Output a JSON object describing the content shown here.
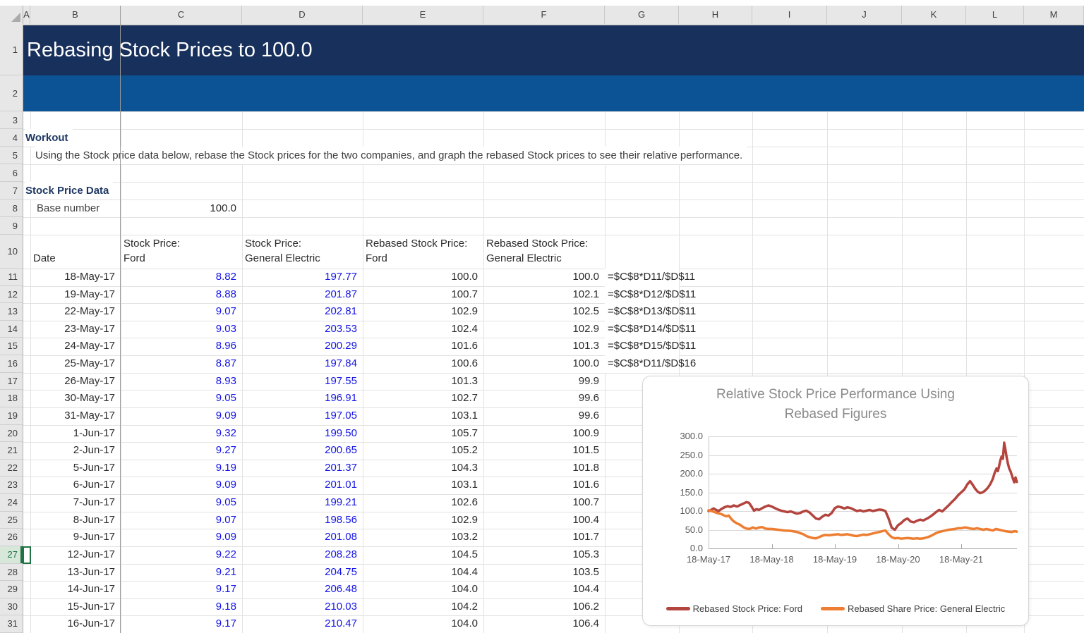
{
  "colors": {
    "title_band_bg": "#18305C",
    "subtitle_band_bg": "#0B5394",
    "heading_text": "#1F3864",
    "input_blue": "#1414E8",
    "selection_green": "#217346",
    "ford_line": "#B3443E",
    "ge_line": "#ED7D31"
  },
  "sheet": {
    "title": "Rebasing Stock Prices to 100.0",
    "column_letters": [
      "A",
      "B",
      "C",
      "D",
      "E",
      "F",
      "G",
      "H",
      "I",
      "J",
      "K",
      "L",
      "M"
    ],
    "row_count": 31,
    "selected_row": 27,
    "selected_cell": "A27",
    "workout_label": "Workout",
    "instruction": "Using the Stock price data below, rebase the Stock prices for the two companies, and graph the rebased Stock prices to see their relative performance.",
    "section_label": "Stock Price Data",
    "base_number_label": "Base number",
    "base_number_value": "100.0",
    "table": {
      "columns": [
        {
          "col": "B",
          "lines": [
            "Date"
          ]
        },
        {
          "col": "C",
          "lines": [
            "Stock Price:",
            "Ford"
          ]
        },
        {
          "col": "D",
          "lines": [
            "Stock Price:",
            "General Electric"
          ]
        },
        {
          "col": "E",
          "lines": [
            "Rebased Stock Price:",
            "Ford"
          ]
        },
        {
          "col": "F",
          "lines": [
            "Rebased Stock Price:",
            "General Electric"
          ]
        }
      ],
      "rows": [
        {
          "row": 11,
          "date": "18-May-17",
          "ford": "8.82",
          "ge": "197.77",
          "rebased_ford": "100.0",
          "rebased_ge": "100.0",
          "formula": "=$C$8*D11/$D$11"
        },
        {
          "row": 12,
          "date": "19-May-17",
          "ford": "8.88",
          "ge": "201.87",
          "rebased_ford": "100.7",
          "rebased_ge": "102.1",
          "formula": "=$C$8*D12/$D$11"
        },
        {
          "row": 13,
          "date": "22-May-17",
          "ford": "9.07",
          "ge": "202.81",
          "rebased_ford": "102.9",
          "rebased_ge": "102.5",
          "formula": "=$C$8*D13/$D$11"
        },
        {
          "row": 14,
          "date": "23-May-17",
          "ford": "9.03",
          "ge": "203.53",
          "rebased_ford": "102.4",
          "rebased_ge": "102.9",
          "formula": "=$C$8*D14/$D$11"
        },
        {
          "row": 15,
          "date": "24-May-17",
          "ford": "8.96",
          "ge": "200.29",
          "rebased_ford": "101.6",
          "rebased_ge": "101.3",
          "formula": "=$C$8*D15/$D$11"
        },
        {
          "row": 16,
          "date": "25-May-17",
          "ford": "8.87",
          "ge": "197.84",
          "rebased_ford": "100.6",
          "rebased_ge": "100.0",
          "formula": "=$C$8*D11/$D$16"
        },
        {
          "row": 17,
          "date": "26-May-17",
          "ford": "8.93",
          "ge": "197.55",
          "rebased_ford": "101.3",
          "rebased_ge": "99.9"
        },
        {
          "row": 18,
          "date": "30-May-17",
          "ford": "9.05",
          "ge": "196.91",
          "rebased_ford": "102.7",
          "rebased_ge": "99.6"
        },
        {
          "row": 19,
          "date": "31-May-17",
          "ford": "9.09",
          "ge": "197.05",
          "rebased_ford": "103.1",
          "rebased_ge": "99.6"
        },
        {
          "row": 20,
          "date": "1-Jun-17",
          "ford": "9.32",
          "ge": "199.50",
          "rebased_ford": "105.7",
          "rebased_ge": "100.9"
        },
        {
          "row": 21,
          "date": "2-Jun-17",
          "ford": "9.27",
          "ge": "200.65",
          "rebased_ford": "105.2",
          "rebased_ge": "101.5"
        },
        {
          "row": 22,
          "date": "5-Jun-17",
          "ford": "9.19",
          "ge": "201.37",
          "rebased_ford": "104.3",
          "rebased_ge": "101.8"
        },
        {
          "row": 23,
          "date": "6-Jun-17",
          "ford": "9.09",
          "ge": "201.01",
          "rebased_ford": "103.1",
          "rebased_ge": "101.6"
        },
        {
          "row": 24,
          "date": "7-Jun-17",
          "ford": "9.05",
          "ge": "199.21",
          "rebased_ford": "102.6",
          "rebased_ge": "100.7"
        },
        {
          "row": 25,
          "date": "8-Jun-17",
          "ford": "9.07",
          "ge": "198.56",
          "rebased_ford": "102.9",
          "rebased_ge": "100.4"
        },
        {
          "row": 26,
          "date": "9-Jun-17",
          "ford": "9.09",
          "ge": "201.08",
          "rebased_ford": "103.2",
          "rebased_ge": "101.7"
        },
        {
          "row": 27,
          "date": "12-Jun-17",
          "ford": "9.22",
          "ge": "208.28",
          "rebased_ford": "104.5",
          "rebased_ge": "105.3"
        },
        {
          "row": 28,
          "date": "13-Jun-17",
          "ford": "9.21",
          "ge": "204.75",
          "rebased_ford": "104.4",
          "rebased_ge": "103.5"
        },
        {
          "row": 29,
          "date": "14-Jun-17",
          "ford": "9.17",
          "ge": "206.48",
          "rebased_ford": "104.0",
          "rebased_ge": "104.4"
        },
        {
          "row": 30,
          "date": "15-Jun-17",
          "ford": "9.18",
          "ge": "210.03",
          "rebased_ford": "104.2",
          "rebased_ge": "106.2"
        },
        {
          "row": 31,
          "date": "16-Jun-17",
          "ford": "9.17",
          "ge": "210.47",
          "rebased_ford": "104.0",
          "rebased_ge": "106.4"
        }
      ]
    }
  },
  "chart_data": {
    "type": "line",
    "title_lines": [
      "Relative Stock Price Performance Using",
      "Rebased Figures"
    ],
    "x_tick_labels": [
      "18-May-17",
      "18-May-18",
      "18-May-19",
      "18-May-20",
      "18-May-21"
    ],
    "y_ticks": [
      0,
      50,
      100,
      150,
      200,
      250,
      300
    ],
    "y_tick_labels": [
      "0.0",
      "50.0",
      "100.0",
      "150.0",
      "200.0",
      "250.0",
      "300.0"
    ],
    "ylim": [
      0,
      300
    ],
    "x_years_span": 4.88,
    "grid": "horizontal",
    "legend_position": "bottom",
    "series": [
      {
        "name": "Rebased Stock Price: Ford",
        "color": "#B3443E",
        "points": [
          [
            0,
            100
          ],
          [
            0.04,
            103
          ],
          [
            0.08,
            107
          ],
          [
            0.12,
            103
          ],
          [
            0.16,
            100
          ],
          [
            0.2,
            105
          ],
          [
            0.25,
            110
          ],
          [
            0.3,
            113
          ],
          [
            0.35,
            111
          ],
          [
            0.4,
            115
          ],
          [
            0.45,
            112
          ],
          [
            0.5,
            116
          ],
          [
            0.55,
            120
          ],
          [
            0.6,
            124
          ],
          [
            0.64,
            122
          ],
          [
            0.68,
            112
          ],
          [
            0.72,
            101
          ],
          [
            0.76,
            105
          ],
          [
            0.8,
            103
          ],
          [
            0.85,
            108
          ],
          [
            0.9,
            112
          ],
          [
            0.95,
            115
          ],
          [
            1.0,
            112
          ],
          [
            1.05,
            108
          ],
          [
            1.1,
            104
          ],
          [
            1.15,
            101
          ],
          [
            1.2,
            99
          ],
          [
            1.25,
            97
          ],
          [
            1.3,
            99
          ],
          [
            1.35,
            96
          ],
          [
            1.4,
            93
          ],
          [
            1.45,
            95
          ],
          [
            1.5,
            99
          ],
          [
            1.55,
            101
          ],
          [
            1.6,
            96
          ],
          [
            1.65,
            88
          ],
          [
            1.7,
            80
          ],
          [
            1.75,
            78
          ],
          [
            1.8,
            85
          ],
          [
            1.85,
            90
          ],
          [
            1.9,
            88
          ],
          [
            1.95,
            95
          ],
          [
            2.0,
            108
          ],
          [
            2.05,
            112
          ],
          [
            2.1,
            110
          ],
          [
            2.15,
            107
          ],
          [
            2.2,
            110
          ],
          [
            2.25,
            108
          ],
          [
            2.3,
            104
          ],
          [
            2.35,
            100
          ],
          [
            2.4,
            102
          ],
          [
            2.45,
            99
          ],
          [
            2.5,
            101
          ],
          [
            2.55,
            103
          ],
          [
            2.6,
            100
          ],
          [
            2.65,
            102
          ],
          [
            2.7,
            104
          ],
          [
            2.75,
            103
          ],
          [
            2.8,
            100
          ],
          [
            2.85,
            80
          ],
          [
            2.9,
            55
          ],
          [
            2.95,
            50
          ],
          [
            3.0,
            62
          ],
          [
            3.05,
            68
          ],
          [
            3.1,
            76
          ],
          [
            3.15,
            80
          ],
          [
            3.2,
            72
          ],
          [
            3.25,
            70
          ],
          [
            3.3,
            74
          ],
          [
            3.35,
            77
          ],
          [
            3.4,
            75
          ],
          [
            3.45,
            79
          ],
          [
            3.5,
            84
          ],
          [
            3.55,
            90
          ],
          [
            3.6,
            97
          ],
          [
            3.65,
            103
          ],
          [
            3.7,
            99
          ],
          [
            3.75,
            107
          ],
          [
            3.8,
            115
          ],
          [
            3.85,
            124
          ],
          [
            3.9,
            132
          ],
          [
            3.95,
            142
          ],
          [
            4.0,
            150
          ],
          [
            4.05,
            158
          ],
          [
            4.1,
            172
          ],
          [
            4.14,
            180
          ],
          [
            4.18,
            171
          ],
          [
            4.22,
            160
          ],
          [
            4.26,
            152
          ],
          [
            4.3,
            148
          ],
          [
            4.34,
            150
          ],
          [
            4.38,
            155
          ],
          [
            4.42,
            162
          ],
          [
            4.46,
            172
          ],
          [
            4.5,
            186
          ],
          [
            4.53,
            202
          ],
          [
            4.56,
            214
          ],
          [
            4.58,
            207
          ],
          [
            4.6,
            220
          ],
          [
            4.62,
            236
          ],
          [
            4.64,
            246
          ],
          [
            4.66,
            240
          ],
          [
            4.68,
            283
          ],
          [
            4.7,
            264
          ],
          [
            4.72,
            244
          ],
          [
            4.74,
            227
          ],
          [
            4.76,
            214
          ],
          [
            4.78,
            207
          ],
          [
            4.8,
            197
          ],
          [
            4.82,
            186
          ],
          [
            4.84,
            177
          ],
          [
            4.86,
            190
          ],
          [
            4.88,
            178
          ]
        ]
      },
      {
        "name": "Rebased Share Price: General Electric",
        "color": "#ED7D31",
        "points": [
          [
            0,
            102
          ],
          [
            0.05,
            100
          ],
          [
            0.1,
            97
          ],
          [
            0.15,
            94
          ],
          [
            0.2,
            92
          ],
          [
            0.25,
            88
          ],
          [
            0.28,
            86
          ],
          [
            0.32,
            88
          ],
          [
            0.36,
            79
          ],
          [
            0.4,
            72
          ],
          [
            0.45,
            67
          ],
          [
            0.5,
            63
          ],
          [
            0.55,
            57
          ],
          [
            0.6,
            53
          ],
          [
            0.65,
            52
          ],
          [
            0.7,
            56
          ],
          [
            0.75,
            53
          ],
          [
            0.8,
            56
          ],
          [
            0.85,
            57
          ],
          [
            0.9,
            53
          ],
          [
            0.95,
            52
          ],
          [
            1.0,
            52
          ],
          [
            1.1,
            50
          ],
          [
            1.2,
            48
          ],
          [
            1.3,
            47
          ],
          [
            1.4,
            44
          ],
          [
            1.5,
            38
          ],
          [
            1.55,
            33
          ],
          [
            1.6,
            30
          ],
          [
            1.65,
            28
          ],
          [
            1.7,
            27
          ],
          [
            1.75,
            30
          ],
          [
            1.8,
            34
          ],
          [
            1.85,
            36
          ],
          [
            1.9,
            35
          ],
          [
            1.95,
            36
          ],
          [
            2.0,
            37
          ],
          [
            2.05,
            38
          ],
          [
            2.1,
            36
          ],
          [
            2.15,
            37
          ],
          [
            2.2,
            38
          ],
          [
            2.25,
            36
          ],
          [
            2.3,
            34
          ],
          [
            2.35,
            33
          ],
          [
            2.4,
            35
          ],
          [
            2.45,
            37
          ],
          [
            2.5,
            36
          ],
          [
            2.55,
            38
          ],
          [
            2.6,
            40
          ],
          [
            2.65,
            42
          ],
          [
            2.7,
            44
          ],
          [
            2.75,
            46
          ],
          [
            2.8,
            48
          ],
          [
            2.85,
            38
          ],
          [
            2.9,
            30
          ],
          [
            2.95,
            27
          ],
          [
            3.0,
            28
          ],
          [
            3.05,
            26
          ],
          [
            3.1,
            27
          ],
          [
            3.15,
            28
          ],
          [
            3.2,
            27
          ],
          [
            3.25,
            26
          ],
          [
            3.3,
            27
          ],
          [
            3.35,
            26
          ],
          [
            3.4,
            27
          ],
          [
            3.45,
            29
          ],
          [
            3.5,
            32
          ],
          [
            3.55,
            36
          ],
          [
            3.6,
            41
          ],
          [
            3.65,
            44
          ],
          [
            3.7,
            46
          ],
          [
            3.75,
            48
          ],
          [
            3.8,
            50
          ],
          [
            3.85,
            51
          ],
          [
            3.9,
            52
          ],
          [
            3.95,
            54
          ],
          [
            4.0,
            54
          ],
          [
            4.05,
            56
          ],
          [
            4.1,
            55
          ],
          [
            4.15,
            53
          ],
          [
            4.2,
            52
          ],
          [
            4.25,
            54
          ],
          [
            4.3,
            52
          ],
          [
            4.35,
            50
          ],
          [
            4.4,
            52
          ],
          [
            4.45,
            50
          ],
          [
            4.5,
            48
          ],
          [
            4.55,
            52
          ],
          [
            4.6,
            50
          ],
          [
            4.65,
            48
          ],
          [
            4.7,
            46
          ],
          [
            4.75,
            45
          ],
          [
            4.8,
            44
          ],
          [
            4.85,
            46
          ],
          [
            4.88,
            45
          ]
        ]
      }
    ]
  }
}
